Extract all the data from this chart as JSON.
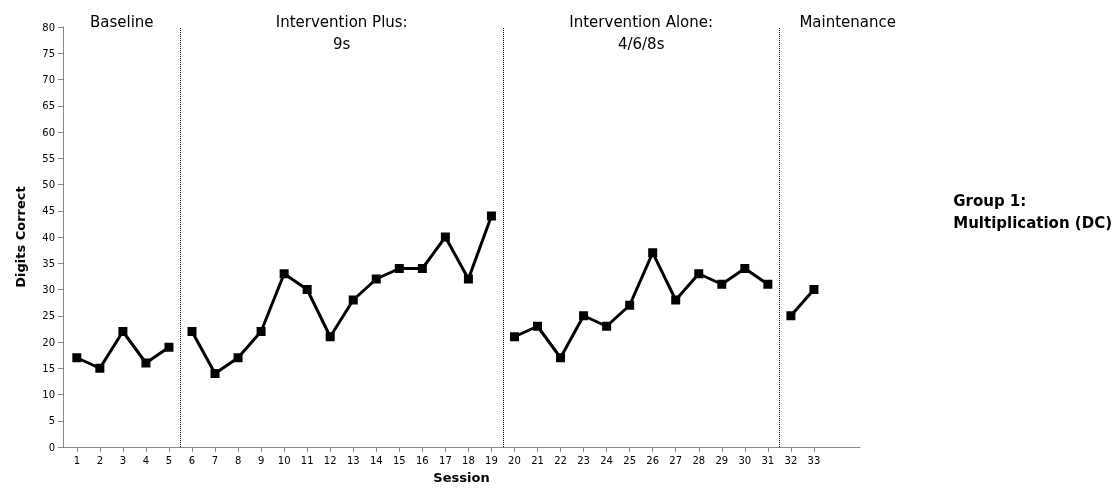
{
  "chart_data": {
    "type": "line",
    "xlabel": "Session",
    "ylabel": "Digits Correct",
    "xlim": [
      0.4,
      35
    ],
    "xticks": [
      1,
      2,
      3,
      4,
      5,
      6,
      7,
      8,
      9,
      10,
      11,
      12,
      13,
      14,
      15,
      16,
      17,
      18,
      19,
      20,
      21,
      22,
      23,
      24,
      25,
      26,
      27,
      28,
      29,
      30,
      31,
      32,
      33
    ],
    "ylim": [
      0,
      80
    ],
    "yticks": [
      0,
      5,
      10,
      15,
      20,
      25,
      30,
      35,
      40,
      45,
      50,
      55,
      60,
      65,
      70,
      75,
      80
    ],
    "grid": false,
    "marker": "square",
    "line_style": "solid",
    "series": [
      {
        "color": "#000000",
        "x": [
          1,
          2,
          3,
          4,
          5
        ],
        "values": [
          17,
          15,
          22,
          16,
          19
        ]
      },
      {
        "color": "#000000",
        "x": [
          6,
          7,
          8,
          9,
          10,
          11,
          12,
          13,
          14,
          15,
          16,
          17,
          18,
          19
        ],
        "values": [
          22,
          14,
          17,
          22,
          33,
          30,
          21,
          28,
          32,
          34,
          34,
          40,
          32,
          44
        ]
      },
      {
        "color": "#000000",
        "x": [
          20,
          21,
          22,
          23,
          24,
          25,
          26,
          27,
          28,
          29,
          30,
          31
        ],
        "values": [
          21,
          23,
          17,
          25,
          23,
          27,
          37,
          28,
          33,
          31,
          34,
          31
        ]
      },
      {
        "color": "#000000",
        "x": [
          32,
          33
        ],
        "values": [
          25,
          30
        ]
      }
    ],
    "ref_lines": [
      {
        "axis": "x",
        "value": 5.5,
        "color": "#000000",
        "line_style": "dotted"
      },
      {
        "axis": "x",
        "value": 19.5,
        "color": "#000000",
        "line_style": "dotted"
      },
      {
        "axis": "x",
        "value": 31.5,
        "color": "#000000",
        "line_style": "dotted"
      }
    ],
    "annotations": [
      "Baseline",
      "Intervention Plus:\n9s",
      "Intervention Alone:\n4/6/8s",
      "Maintenance",
      "Group 1:\nMultiplication (DC)"
    ]
  }
}
